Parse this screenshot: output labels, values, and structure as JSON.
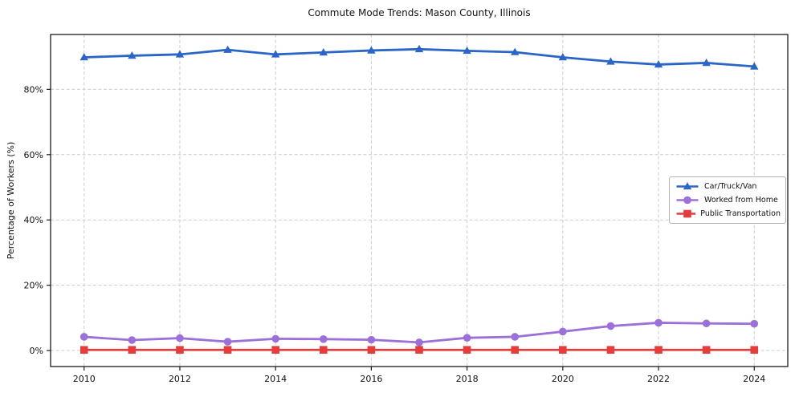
{
  "chart_data": {
    "type": "line",
    "title": "Commute Mode Trends: Mason County, Illinois",
    "xlabel": "",
    "ylabel": "Percentage of Workers (%)",
    "x": [
      2010,
      2011,
      2012,
      2013,
      2014,
      2015,
      2016,
      2017,
      2018,
      2019,
      2020,
      2021,
      2022,
      2023,
      2024
    ],
    "series": [
      {
        "name": "Car/Truck/Van",
        "marker": "triangle",
        "color": "#2b66c6",
        "values": [
          89.8,
          90.3,
          90.7,
          92.1,
          90.7,
          91.3,
          91.9,
          92.3,
          91.8,
          91.4,
          89.8,
          88.5,
          87.6,
          88.1,
          87.0
        ]
      },
      {
        "name": "Worked from Home",
        "marker": "circle",
        "color": "#9b70d8",
        "values": [
          4.2,
          3.2,
          3.8,
          2.7,
          3.6,
          3.5,
          3.3,
          2.5,
          3.9,
          4.2,
          5.8,
          7.5,
          8.5,
          8.3,
          8.2
        ]
      },
      {
        "name": "Public Transportation",
        "marker": "square",
        "color": "#e43d3d",
        "values": [
          0.2,
          0.2,
          0.2,
          0.2,
          0.2,
          0.2,
          0.2,
          0.2,
          0.2,
          0.2,
          0.2,
          0.2,
          0.2,
          0.2,
          0.2
        ]
      }
    ],
    "xticks": [
      2010,
      2012,
      2014,
      2016,
      2018,
      2020,
      2022,
      2024
    ],
    "xtick_labels": [
      "2010",
      "2012",
      "2014",
      "2016",
      "2018",
      "2020",
      "2022",
      "2024"
    ],
    "yticks": [
      0,
      20,
      40,
      60,
      80
    ],
    "ytick_labels": [
      "0%",
      "20%",
      "40%",
      "60%",
      "80%"
    ],
    "xlim": [
      2009.3,
      2024.7
    ],
    "ylim": [
      -4.9,
      96.8
    ],
    "grid": true,
    "legend_position": "center right"
  },
  "style": {
    "grid_color": "#cccccc",
    "spine_color": "#1a1a1a",
    "text_color": "#111111",
    "background": "#ffffff"
  }
}
